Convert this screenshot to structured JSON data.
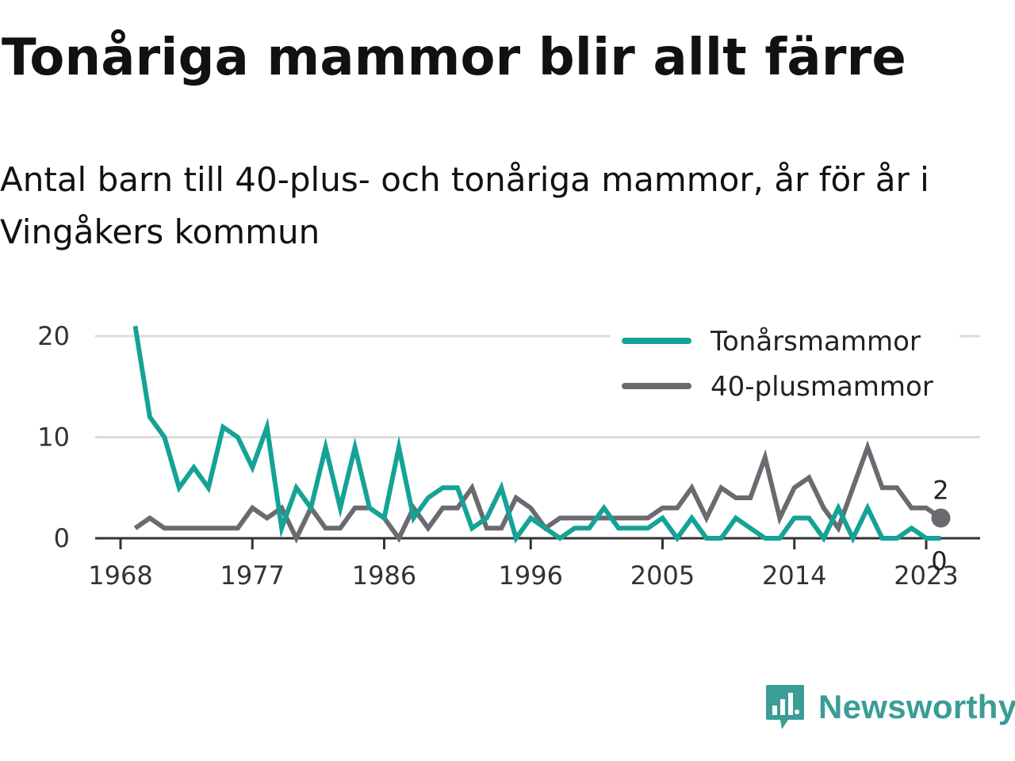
{
  "title": "Tonåriga mammor blir allt färre",
  "subtitle": "Antal barn till 40-plus- och tonåriga mammor, år för år i Vingåkers kommun",
  "brand": {
    "name": "Newsworthy",
    "icon": "newsworthy-logo-icon",
    "color": "#3a9d96"
  },
  "chart_data": {
    "type": "line",
    "x": [
      1969,
      1970,
      1971,
      1972,
      1973,
      1974,
      1975,
      1976,
      1977,
      1978,
      1979,
      1980,
      1981,
      1982,
      1983,
      1984,
      1985,
      1986,
      1987,
      1988,
      1989,
      1990,
      1991,
      1992,
      1993,
      1994,
      1995,
      1996,
      1997,
      1998,
      1999,
      2000,
      2001,
      2002,
      2003,
      2004,
      2005,
      2006,
      2007,
      2008,
      2009,
      2010,
      2011,
      2012,
      2013,
      2014,
      2015,
      2016,
      2017,
      2018,
      2019,
      2020,
      2021,
      2022,
      2023,
      2024
    ],
    "series": [
      {
        "name": "Tonårsmammor",
        "color": "#14a396",
        "values": [
          21,
          12,
          10,
          5,
          7,
          5,
          11,
          10,
          7,
          11,
          1,
          5,
          3,
          9,
          3,
          9,
          3,
          2,
          9,
          2,
          4,
          5,
          5,
          1,
          2,
          5,
          0,
          2,
          1,
          0,
          1,
          1,
          3,
          1,
          1,
          1,
          2,
          0,
          2,
          0,
          0,
          2,
          1,
          0,
          0,
          2,
          2,
          0,
          3,
          0,
          3,
          0,
          0,
          1,
          0,
          0
        ]
      },
      {
        "name": "40-plusmammor",
        "color": "#6b6a70",
        "values": [
          1,
          2,
          1,
          1,
          1,
          1,
          1,
          1,
          3,
          2,
          3,
          0,
          3,
          1,
          1,
          3,
          3,
          2,
          0,
          3,
          1,
          3,
          3,
          5,
          1,
          1,
          4,
          3,
          1,
          2,
          2,
          2,
          2,
          2,
          2,
          2,
          3,
          3,
          5,
          2,
          5,
          4,
          4,
          8,
          2,
          5,
          6,
          3,
          1,
          5,
          9,
          5,
          5,
          3,
          3,
          2
        ]
      }
    ],
    "xticks": [
      1968,
      1977,
      1986,
      1996,
      2005,
      2014,
      2023
    ],
    "yticks": [
      0,
      10,
      20
    ],
    "xlim": [
      1968,
      2025
    ],
    "ylim": [
      0,
      21
    ],
    "end_labels": {
      "40-plusmammor": "2",
      "Tonårsmammor": "0"
    },
    "grid": "horizontal",
    "legend": "top-right"
  }
}
